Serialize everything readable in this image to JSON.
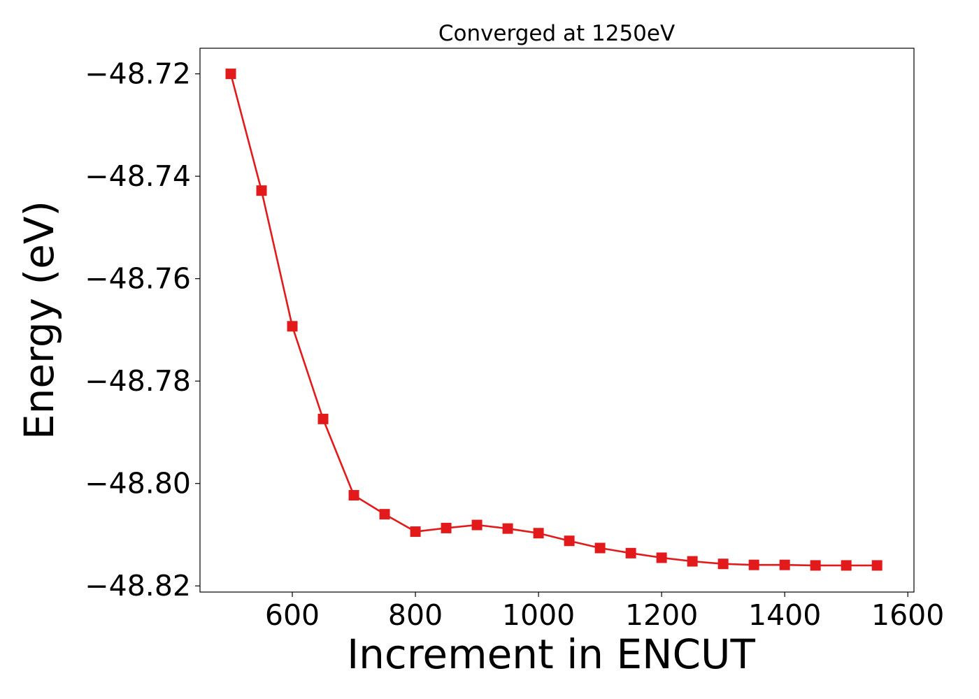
{
  "chart_data": {
    "type": "line",
    "title": "Converged at 1250eV",
    "xlabel": "Increment in ENCUT",
    "ylabel": "Energy (eV)",
    "xlim": [
      450,
      1610
    ],
    "ylim": [
      -48.8212,
      -48.715
    ],
    "x_ticks": [
      600,
      800,
      1000,
      1200,
      1400,
      1600
    ],
    "x_tick_labels": [
      "600",
      "800",
      "1000",
      "1200",
      "1400",
      "1600"
    ],
    "y_ticks": [
      -48.72,
      -48.74,
      -48.76,
      -48.78,
      -48.8,
      -48.82
    ],
    "y_tick_labels": [
      "−48.72",
      "−48.74",
      "−48.76",
      "−48.78",
      "−48.80",
      "−48.82"
    ],
    "grid": false,
    "series": [
      {
        "color": "#e31a1c",
        "marker": "square",
        "x": [
          500,
          550,
          600,
          650,
          700,
          750,
          800,
          850,
          900,
          950,
          1000,
          1050,
          1100,
          1150,
          1200,
          1250,
          1300,
          1350,
          1400,
          1450,
          1500,
          1550
        ],
        "y": [
          -48.72,
          -48.7428,
          -48.7693,
          -48.7874,
          -48.8023,
          -48.806,
          -48.8094,
          -48.8087,
          -48.8081,
          -48.8088,
          -48.8097,
          -48.8112,
          -48.8126,
          -48.8136,
          -48.8145,
          -48.8152,
          -48.8157,
          -48.8159,
          -48.8159,
          -48.816,
          -48.816,
          -48.816
        ]
      }
    ]
  }
}
